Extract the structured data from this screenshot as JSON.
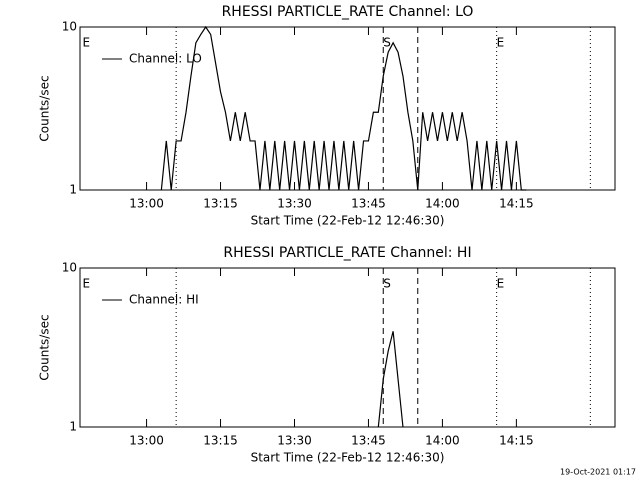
{
  "chart_data": [
    {
      "type": "line",
      "title": "RHESSI PARTICLE_RATE Channel: LO",
      "xlabel": "Start Time (22-Feb-12 12:46:30)",
      "ylabel": "Counts/sec",
      "log_y": true,
      "legend": "upper left",
      "xlim": [
        "12:46:30",
        "14:35"
      ],
      "xticks": [
        "13:00",
        "13:15",
        "13:30",
        "13:45",
        "14:00",
        "14:15"
      ],
      "ylim": [
        1,
        10
      ],
      "yticks": [
        1,
        10
      ],
      "markers": [
        {
          "x": "13:06",
          "style": "dotted"
        },
        {
          "x": "13:48",
          "style": "dashed"
        },
        {
          "x": "13:55",
          "style": "dashed"
        },
        {
          "x": "14:11",
          "style": "dotted"
        },
        {
          "x": "14:30",
          "style": "dotted"
        }
      ],
      "annotations": [
        {
          "x": "12:47",
          "text": "E"
        },
        {
          "x": "13:48",
          "text": "S"
        },
        {
          "x": "14:11",
          "text": "E"
        }
      ],
      "series": [
        {
          "name": "Channel: LO",
          "color": "#000000",
          "x": [
            "13:03",
            "13:04",
            "13:05",
            "13:06",
            "13:07",
            "13:08",
            "13:09",
            "13:10",
            "13:11",
            "13:12",
            "13:13",
            "13:14",
            "13:15",
            "13:16",
            "13:17",
            "13:18",
            "13:19",
            "13:20",
            "13:21",
            "13:22",
            "13:23",
            "13:24",
            "13:25",
            "13:26",
            "13:27",
            "13:28",
            "13:29",
            "13:30",
            "13:31",
            "13:32",
            "13:33",
            "13:34",
            "13:35",
            "13:36",
            "13:37",
            "13:38",
            "13:39",
            "13:40",
            "13:41",
            "13:42",
            "13:43",
            "13:44",
            "13:45",
            "13:46",
            "13:47",
            "13:48",
            "13:49",
            "13:50",
            "13:51",
            "13:52",
            "13:53",
            "13:54",
            "13:55",
            "13:56",
            "13:57",
            "13:58",
            "13:59",
            "14:00",
            "14:01",
            "14:02",
            "14:03",
            "14:04",
            "14:05",
            "14:06",
            "14:07",
            "14:08",
            "14:09",
            "14:10",
            "14:11",
            "14:12",
            "14:13",
            "14:14",
            "14:15",
            "14:16",
            "14:17"
          ],
          "values": [
            1,
            2,
            1,
            2,
            2,
            3,
            5,
            8,
            9,
            10,
            9,
            6,
            4,
            3,
            2,
            3,
            2,
            3,
            2,
            2,
            1,
            2,
            1,
            2,
            1,
            2,
            1,
            2,
            1,
            2,
            1,
            2,
            1,
            2,
            1,
            2,
            1,
            2,
            1,
            2,
            1,
            2,
            2,
            3,
            3,
            5,
            7,
            8,
            7,
            5,
            3,
            2,
            1,
            3,
            2,
            3,
            2,
            3,
            2,
            3,
            2,
            3,
            2,
            1,
            2,
            1,
            2,
            1,
            2,
            1,
            2,
            1,
            2,
            1,
            1
          ]
        }
      ]
    },
    {
      "type": "line",
      "title": "RHESSI PARTICLE_RATE Channel: HI",
      "xlabel": "Start Time (22-Feb-12 12:46:30)",
      "ylabel": "Counts/sec",
      "log_y": true,
      "legend": "upper left",
      "xlim": [
        "12:46:30",
        "14:35"
      ],
      "xticks": [
        "13:00",
        "13:15",
        "13:30",
        "13:45",
        "14:00",
        "14:15"
      ],
      "ylim": [
        1,
        10
      ],
      "yticks": [
        1,
        10
      ],
      "markers": [
        {
          "x": "13:06",
          "style": "dotted"
        },
        {
          "x": "13:48",
          "style": "dashed"
        },
        {
          "x": "13:55",
          "style": "dashed"
        },
        {
          "x": "14:11",
          "style": "dotted"
        },
        {
          "x": "14:30",
          "style": "dotted"
        }
      ],
      "annotations": [
        {
          "x": "12:47",
          "text": "E"
        },
        {
          "x": "13:48",
          "text": "S"
        },
        {
          "x": "14:11",
          "text": "E"
        }
      ],
      "series": [
        {
          "name": "Channel: HI",
          "color": "#000000",
          "x": [
            "13:47",
            "13:48",
            "13:49",
            "13:50",
            "13:51",
            "13:52"
          ],
          "values": [
            1,
            2,
            3,
            4,
            2,
            1
          ]
        }
      ]
    }
  ],
  "footer": "19-Oct-2021 01:17"
}
